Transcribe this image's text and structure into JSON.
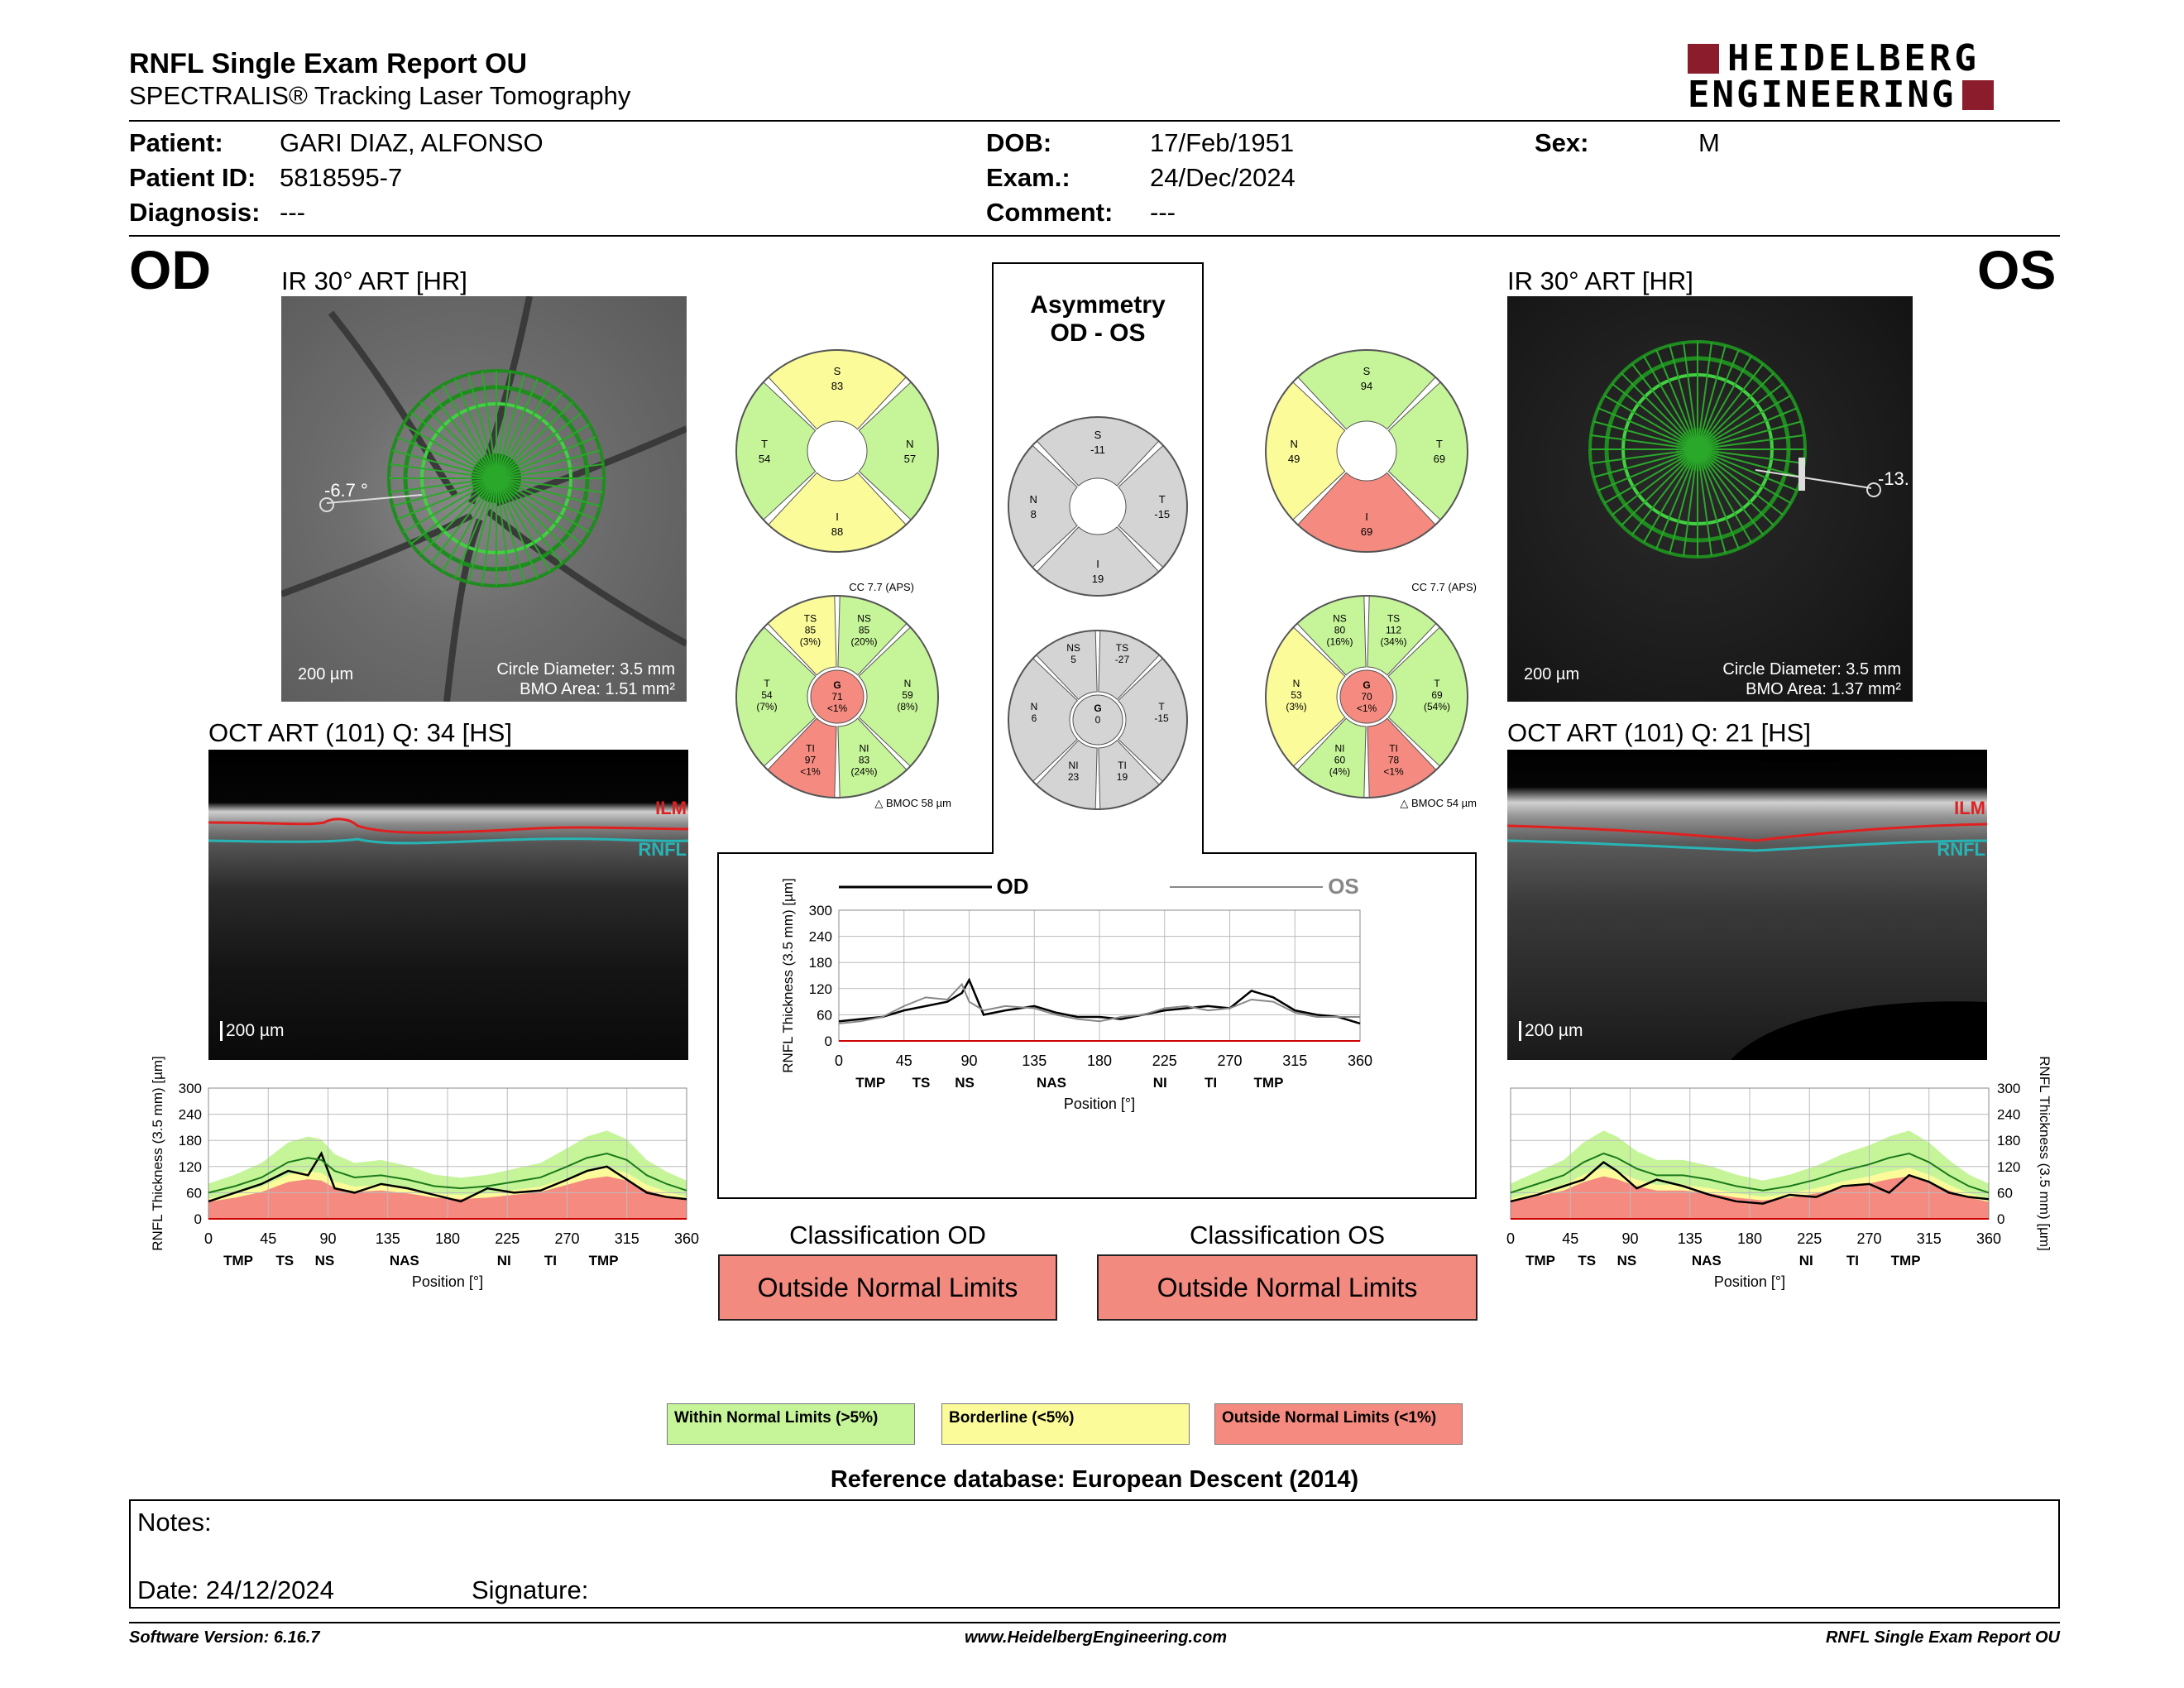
{
  "header": {
    "title": "RNFL Single Exam Report OU",
    "subtitle": "SPECTRALIS® Tracking Laser Tomography",
    "logo_line1": "HEIDELBERG",
    "logo_line2": "ENGINEERING"
  },
  "patient": {
    "patient_label": "Patient:",
    "patient_value": "GARI DIAZ, ALFONSO",
    "id_label": "Patient ID:",
    "id_value": "5818595-7",
    "diagnosis_label": "Diagnosis:",
    "diagnosis_value": "---",
    "dob_label": "DOB:",
    "dob_value": "17/Feb/1951",
    "exam_label": "Exam.:",
    "exam_value": "24/Dec/2024",
    "comment_label": "Comment:",
    "comment_value": "---",
    "sex_label": "Sex:",
    "sex_value": "M"
  },
  "od": {
    "eye": "OD",
    "ir_title": "IR 30° ART [HR]",
    "angle": "-6.7 °",
    "scale": "200 µm",
    "circle_diameter": "Circle Diameter: 3.5 mm",
    "bmo_area": "BMO Area: 1.51 mm²",
    "oct_title": "OCT ART (101) Q: 34 [HS]",
    "ilm": "ILM",
    "rnfl": "RNFL",
    "oct_scale": "200 µm",
    "quad": {
      "S": "83",
      "T": "54",
      "N": "57",
      "I": "88"
    },
    "cc": "CC 7.7 (APS)",
    "sectors": {
      "TS": [
        "TS",
        "85",
        "(3%)"
      ],
      "NS": [
        "NS",
        "85",
        "(20%)"
      ],
      "T": [
        "T",
        "54",
        "(7%)"
      ],
      "G": [
        "G",
        "71",
        "<1%"
      ],
      "N": [
        "N",
        "59",
        "(8%)"
      ],
      "TI": [
        "TI",
        "97",
        "<1%"
      ],
      "NI": [
        "NI",
        "83",
        "(24%)"
      ]
    },
    "bmoc": "BMOC 58 µm"
  },
  "os": {
    "eye": "OS",
    "ir_title": "IR 30° ART [HR]",
    "angle": "-13.",
    "scale": "200 µm",
    "circle_diameter": "Circle Diameter: 3.5 mm",
    "bmo_area": "BMO Area: 1.37 mm²",
    "oct_title": "OCT ART (101) Q: 21 [HS]",
    "ilm": "ILM",
    "rnfl": "RNFL",
    "oct_scale": "200 µm",
    "quad": {
      "S": "94",
      "N": "49",
      "T": "69",
      "I": "69"
    },
    "cc": "CC 7.7 (APS)",
    "sectors": {
      "NS": [
        "NS",
        "80",
        "(16%)"
      ],
      "TS": [
        "TS",
        "112",
        "(34%)"
      ],
      "N": [
        "N",
        "53",
        "(3%)"
      ],
      "G": [
        "G",
        "70",
        "<1%"
      ],
      "T": [
        "T",
        "69",
        "(54%)"
      ],
      "NI": [
        "NI",
        "60",
        "(4%)"
      ],
      "TI": [
        "TI",
        "78",
        "<1%"
      ]
    },
    "bmoc": "BMOC 54 µm"
  },
  "asym": {
    "title1": "Asymmetry",
    "title2": "OD - OS",
    "quad": {
      "S": "-11",
      "N": "8",
      "T": "-15",
      "I": "19"
    },
    "sectors": {
      "NS": "5",
      "TS": "-27",
      "N": "6",
      "G": "0",
      "T": "-15",
      "NI": "23",
      "TI": "19"
    },
    "sector_labels": {
      "NS": "NS",
      "TS": "TS",
      "N": "N",
      "G": "G",
      "T": "T",
      "NI": "NI",
      "TI": "TI"
    },
    "quad_labels": {
      "S": "S",
      "N": "N",
      "T": "T",
      "I": "I"
    }
  },
  "chart_data": [
    {
      "type": "line",
      "title": "",
      "legend": [
        "OD",
        "OS"
      ],
      "xlabel": "Position [°]",
      "ylabel": "RNFL Thickness (3.5 mm) [µm]",
      "xlim": [
        0,
        360
      ],
      "ylim": [
        0,
        300
      ],
      "x_ticks": [
        "0",
        "45",
        "90",
        "135",
        "180",
        "225",
        "270",
        "315",
        "360"
      ],
      "y_ticks": [
        "300",
        "240",
        "180",
        "120",
        "60",
        "0"
      ],
      "sector_labels": [
        [
          "TMP",
          15
        ],
        [
          "TS",
          50
        ],
        [
          "NS",
          80
        ],
        [
          "NAS",
          140
        ],
        [
          "NI",
          215
        ],
        [
          "TI",
          250
        ],
        [
          "TMP",
          290
        ]
      ],
      "x": [
        0,
        15,
        30,
        45,
        60,
        75,
        85,
        90,
        100,
        115,
        135,
        150,
        165,
        180,
        195,
        210,
        225,
        240,
        255,
        270,
        285,
        300,
        315,
        330,
        345,
        360
      ],
      "series": [
        {
          "name": "OD",
          "values": [
            45,
            50,
            55,
            70,
            80,
            90,
            110,
            140,
            60,
            70,
            80,
            65,
            55,
            55,
            50,
            60,
            70,
            75,
            80,
            75,
            115,
            100,
            70,
            60,
            55,
            40
          ]
        },
        {
          "name": "OS",
          "values": [
            40,
            45,
            55,
            80,
            100,
            95,
            130,
            90,
            70,
            80,
            75,
            60,
            50,
            45,
            55,
            60,
            75,
            80,
            70,
            75,
            95,
            90,
            65,
            55,
            55,
            55
          ]
        }
      ]
    },
    {
      "type": "line",
      "title": "",
      "xlabel": "Position [°]",
      "ylabel": "RNFL Thickness (3.5 mm) [µm]",
      "xlim": [
        0,
        360
      ],
      "ylim": [
        0,
        300
      ],
      "x_ticks": [
        "0",
        "45",
        "90",
        "135",
        "180",
        "225",
        "270",
        "315",
        "360"
      ],
      "y_ticks": [
        "300",
        "240",
        "180",
        "120",
        "60",
        "0"
      ],
      "sector_labels": [
        [
          "TMP",
          15
        ],
        [
          "TS",
          50
        ],
        [
          "NS",
          80
        ],
        [
          "NAS",
          140
        ],
        [
          "NI",
          215
        ],
        [
          "TI",
          250
        ],
        [
          "TMP",
          290
        ]
      ],
      "x": [
        0,
        20,
        40,
        60,
        75,
        85,
        95,
        110,
        130,
        150,
        170,
        190,
        210,
        230,
        250,
        270,
        285,
        300,
        315,
        330,
        345,
        360
      ],
      "series": [
        {
          "name": "OD",
          "values": [
            40,
            60,
            80,
            110,
            100,
            150,
            70,
            60,
            80,
            70,
            55,
            40,
            70,
            60,
            65,
            90,
            110,
            120,
            90,
            60,
            50,
            45
          ]
        },
        {
          "name": "normal mean",
          "values": [
            60,
            75,
            95,
            130,
            140,
            135,
            110,
            95,
            100,
            90,
            75,
            70,
            75,
            85,
            95,
            120,
            140,
            150,
            135,
            100,
            80,
            65
          ]
        }
      ]
    },
    {
      "type": "line",
      "title": "",
      "xlabel": "Position [°]",
      "ylabel": "RNFL Thickness (3.5 mm) [µm]",
      "xlim": [
        0,
        360
      ],
      "ylim": [
        0,
        300
      ],
      "x_ticks": [
        "0",
        "45",
        "90",
        "135",
        "180",
        "225",
        "270",
        "315",
        "360"
      ],
      "y_ticks": [
        "300",
        "240",
        "180",
        "120",
        "60",
        "0"
      ],
      "sector_labels": [
        [
          "TMP",
          15
        ],
        [
          "TS",
          50
        ],
        [
          "NS",
          80
        ],
        [
          "NAS",
          140
        ],
        [
          "NI",
          215
        ],
        [
          "TI",
          250
        ],
        [
          "TMP",
          290
        ]
      ],
      "x": [
        0,
        20,
        40,
        55,
        70,
        80,
        95,
        110,
        130,
        150,
        170,
        190,
        210,
        230,
        250,
        270,
        285,
        300,
        315,
        330,
        345,
        360
      ],
      "series": [
        {
          "name": "OS",
          "values": [
            40,
            55,
            75,
            90,
            130,
            110,
            70,
            90,
            75,
            55,
            40,
            35,
            55,
            50,
            75,
            80,
            60,
            100,
            85,
            60,
            50,
            45
          ]
        },
        {
          "name": "normal mean",
          "values": [
            60,
            80,
            100,
            130,
            150,
            140,
            115,
            100,
            100,
            90,
            75,
            65,
            75,
            90,
            110,
            125,
            140,
            150,
            130,
            100,
            75,
            60
          ]
        }
      ]
    }
  ],
  "classification": {
    "od_title": "Classification OD",
    "od_value": "Outside Normal Limits",
    "os_title": "Classification OS",
    "os_value": "Outside Normal Limits"
  },
  "legend": {
    "within": "Within Normal Limits (>5%)",
    "borderline": "Borderline (<5%)",
    "outside": "Outside Normal Limits (<1%)",
    "colors": {
      "within": "#c6f599",
      "borderline": "#fbfb9a",
      "outside": "#f58b80"
    }
  },
  "reference": "Reference database: European Descent (2014)",
  "notes": {
    "notes_label": "Notes:",
    "date_label": "Date: 24/12/2024",
    "signature_label": "Signature:"
  },
  "footer": {
    "version": "Software Version: 6.16.7",
    "url": "www.HeidelbergEngineering.com",
    "report": "RNFL Single Exam Report OU"
  }
}
